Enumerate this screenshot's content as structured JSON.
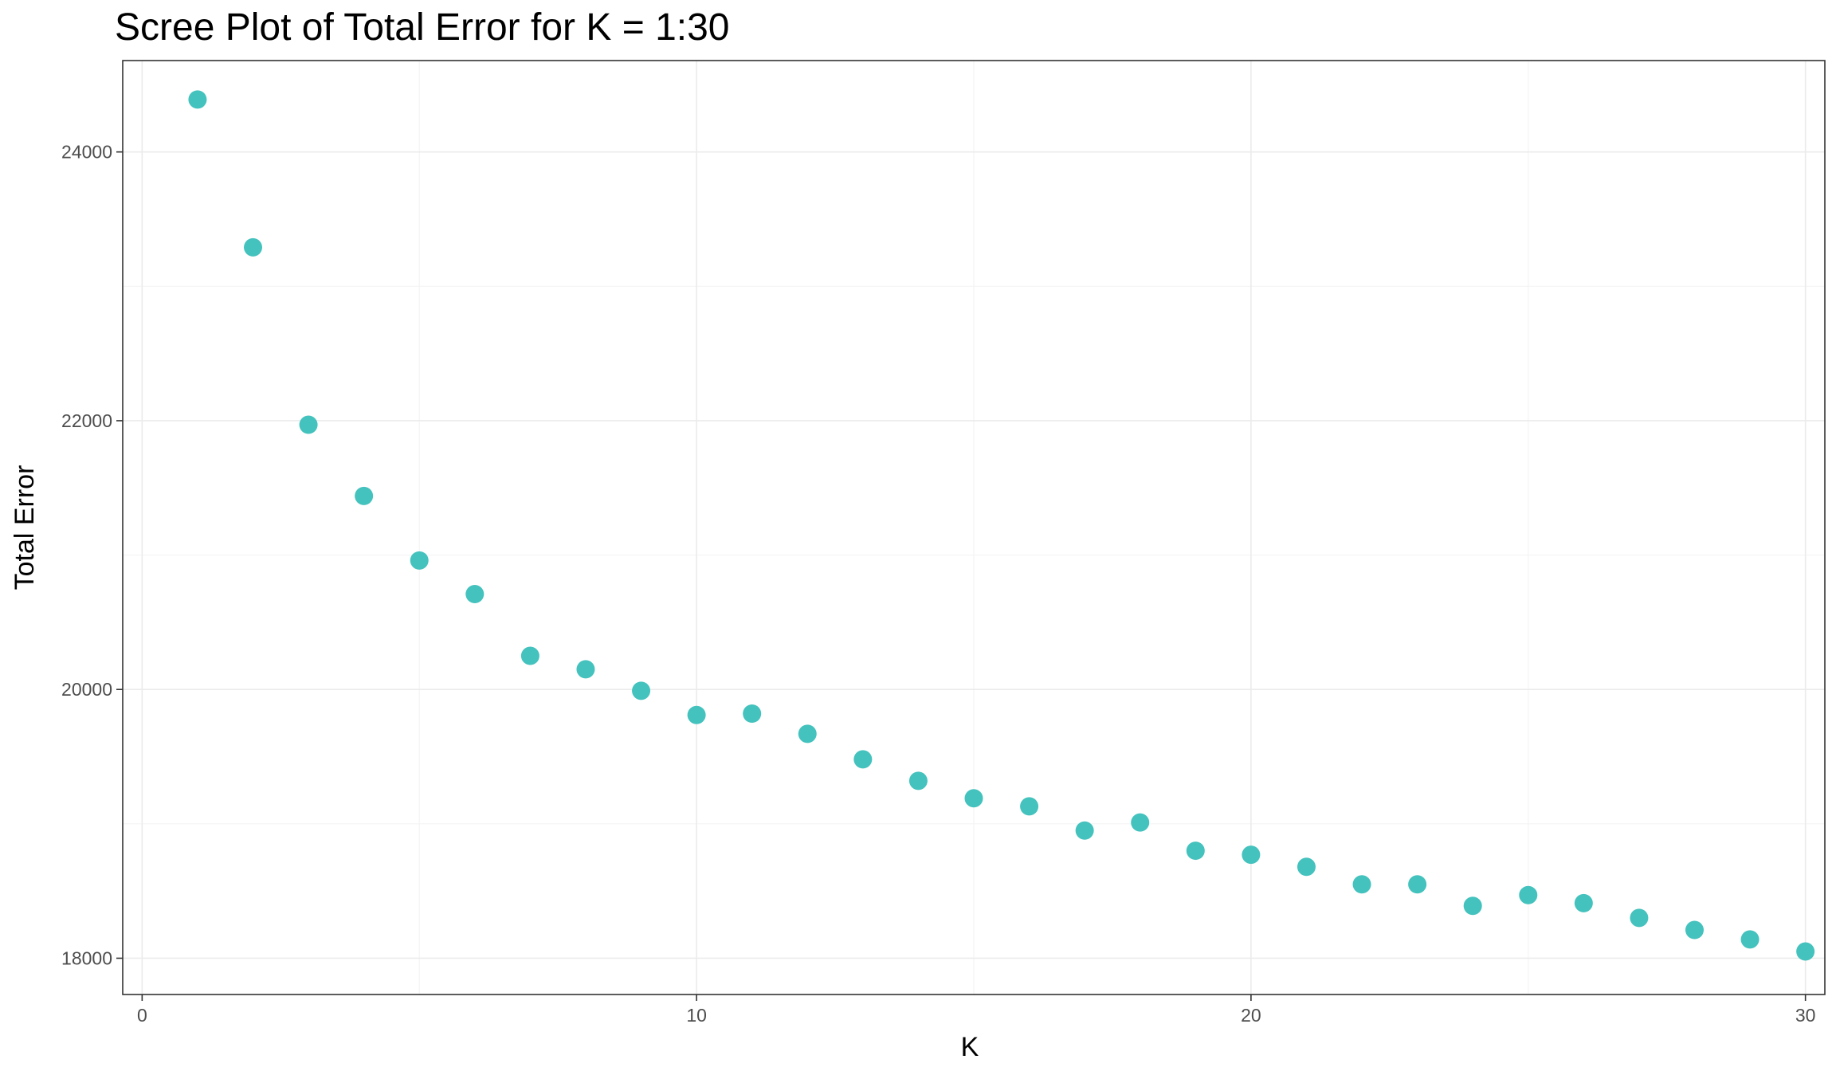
{
  "chart_data": {
    "type": "scatter",
    "title": "Scree Plot of Total Error for K = 1:30",
    "xlabel": "K",
    "ylabel": "Total Error",
    "xlim": [
      -0.35,
      30.35
    ],
    "ylim": [
      17730,
      24680
    ],
    "x_ticks": [
      0,
      10,
      20,
      30
    ],
    "y_ticks": [
      18000,
      20000,
      22000,
      24000
    ],
    "x_minor_ticks": [
      5,
      15,
      25
    ],
    "y_minor_ticks": [
      19000,
      21000,
      23000
    ],
    "grid": true,
    "point_color": "#44C2BD",
    "series": [
      {
        "x": [
          1,
          2,
          3,
          4,
          5,
          6,
          7,
          8,
          9,
          10,
          11,
          12,
          13,
          14,
          15,
          16,
          17,
          18,
          19,
          20,
          21,
          22,
          23,
          24,
          25,
          26,
          27,
          28,
          29,
          30
        ],
        "y": [
          24390,
          23290,
          21970,
          21440,
          20960,
          20710,
          20250,
          20150,
          19990,
          19810,
          19820,
          19670,
          19480,
          19320,
          19190,
          19130,
          18950,
          19010,
          18800,
          18770,
          18680,
          18550,
          18550,
          18390,
          18470,
          18410,
          18300,
          18210,
          18140,
          18050
        ]
      }
    ]
  }
}
